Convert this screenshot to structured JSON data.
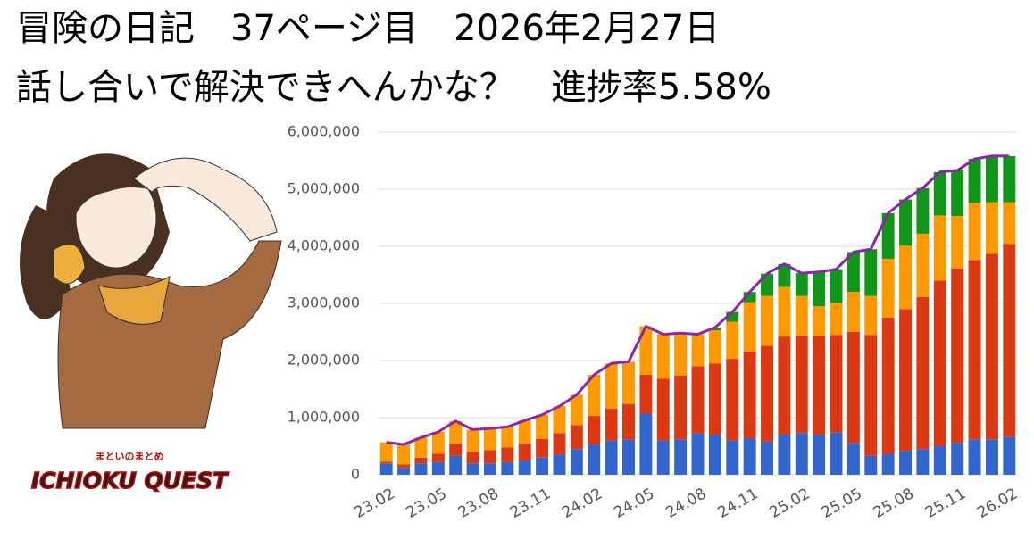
{
  "header": {
    "line1": "冒険の日記　37ページ目　2026年2月27日",
    "line2": "話し合いで解決できへんかな？　進捗率5.58%"
  },
  "logo": {
    "subtitle": "まといのまとめ",
    "title": "ICHIOKU QUEST"
  },
  "chart_data": {
    "type": "bar",
    "stacked": true,
    "categories": [
      "23.02",
      null,
      null,
      "23.05",
      null,
      null,
      "23.08",
      null,
      null,
      "23.11",
      null,
      null,
      "24.02",
      null,
      null,
      "24.05",
      null,
      null,
      "24.08",
      null,
      null,
      "24.11",
      null,
      null,
      "25.02",
      null,
      null,
      "25.05",
      null,
      null,
      "25.08",
      null,
      null,
      "25.11",
      null,
      null,
      "26.02"
    ],
    "series": [
      {
        "color": "#3366cc",
        "values": [
          200000,
          120000,
          200000,
          220000,
          330000,
          200000,
          200000,
          220000,
          250000,
          300000,
          350000,
          450000,
          530000,
          600000,
          620000,
          1070000,
          600000,
          620000,
          720000,
          700000,
          600000,
          640000,
          580000,
          700000,
          730000,
          700000,
          740000,
          560000,
          330000,
          360000,
          420000,
          450000,
          500000,
          560000,
          620000,
          620000,
          660000
        ]
      },
      {
        "color": "#dc3912",
        "values": [
          30000,
          60000,
          100000,
          150000,
          220000,
          200000,
          230000,
          260000,
          300000,
          330000,
          380000,
          420000,
          500000,
          560000,
          620000,
          680000,
          1080000,
          1120000,
          1180000,
          1250000,
          1430000,
          1520000,
          1680000,
          1720000,
          1710000,
          1740000,
          1710000,
          1940000,
          2120000,
          2390000,
          2480000,
          2660000,
          2900000,
          3050000,
          3140000,
          3250000,
          3380000
        ]
      },
      {
        "color": "#ff9900",
        "values": [
          340000,
          350000,
          350000,
          380000,
          390000,
          390000,
          380000,
          360000,
          400000,
          420000,
          470000,
          530000,
          720000,
          790000,
          740000,
          850000,
          780000,
          740000,
          560000,
          580000,
          650000,
          860000,
          870000,
          870000,
          690000,
          510000,
          560000,
          700000,
          680000,
          1030000,
          1110000,
          1110000,
          1140000,
          920000,
          1000000,
          900000,
          730000
        ]
      },
      {
        "color": "#109618",
        "values": [
          0,
          0,
          0,
          0,
          0,
          0,
          0,
          0,
          0,
          0,
          0,
          0,
          0,
          0,
          0,
          0,
          0,
          0,
          0,
          50000,
          170000,
          180000,
          390000,
          400000,
          400000,
          600000,
          590000,
          700000,
          820000,
          800000,
          810000,
          800000,
          760000,
          800000,
          770000,
          810000,
          810000
        ]
      },
      {
        "type": "line",
        "color": "#8e24aa",
        "values": [
          570000,
          530000,
          650000,
          750000,
          940000,
          790000,
          810000,
          840000,
          950000,
          1050000,
          1200000,
          1400000,
          1750000,
          1950000,
          1980000,
          2600000,
          2460000,
          2480000,
          2460000,
          2580000,
          2850000,
          3200000,
          3520000,
          3690000,
          3530000,
          3550000,
          3600000,
          3900000,
          3950000,
          4580000,
          4820000,
          5020000,
          5300000,
          5330000,
          5530000,
          5580000,
          5580000
        ]
      }
    ],
    "ylim": [
      0,
      6000000
    ],
    "yticks": [
      0,
      {
        "value": 1000000,
        "label": "1,000,000"
      },
      {
        "value": 2000000,
        "label": "2,000,000"
      },
      {
        "value": 3000000,
        "label": "3,000,000"
      },
      {
        "value": 4000000,
        "label": "4,000,000"
      },
      {
        "value": 5000000,
        "label": "5,000,000"
      },
      {
        "value": 6000000,
        "label": "6,000,000"
      }
    ],
    "grid": true
  }
}
